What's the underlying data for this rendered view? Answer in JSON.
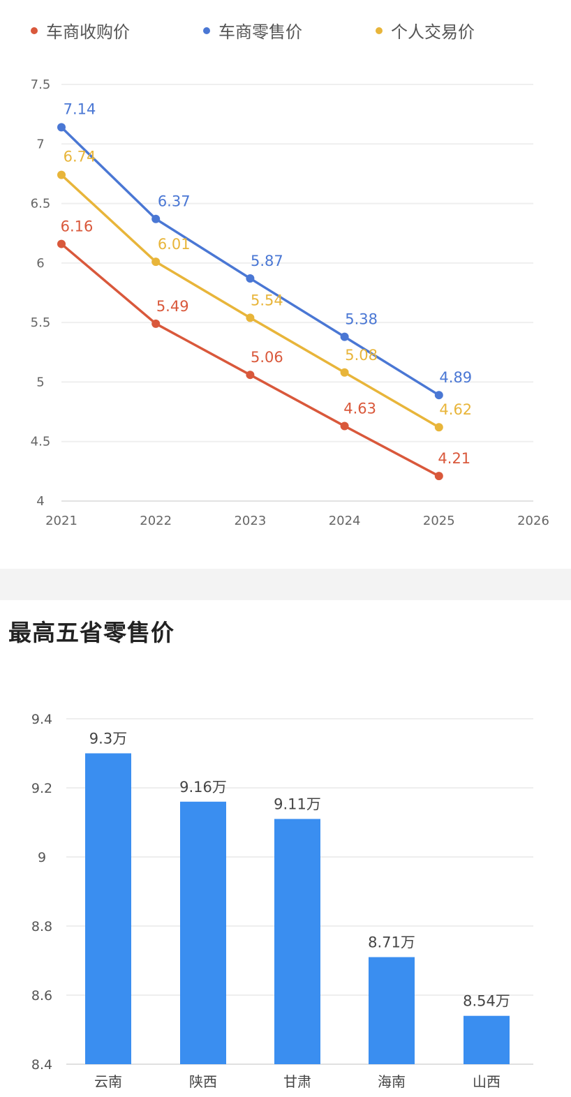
{
  "chart_data": [
    {
      "type": "line",
      "legend": [
        {
          "name": "车商收购价",
          "color": "#d9583b"
        },
        {
          "name": "车商零售价",
          "color": "#4a77d4"
        },
        {
          "name": "个人交易价",
          "color": "#e8b53a"
        }
      ],
      "x": [
        2021,
        2022,
        2023,
        2024,
        2025
      ],
      "x_ticks": [
        "2021",
        "2022",
        "2023",
        "2024",
        "2025",
        "2026"
      ],
      "y_ticks": [
        "4",
        "4.5",
        "5",
        "5.5",
        "6",
        "6.5",
        "7",
        "7.5"
      ],
      "ylim": [
        4,
        7.5
      ],
      "xlim": [
        2021,
        2026
      ],
      "series": [
        {
          "name": "车商收购价",
          "color": "#d9583b",
          "values": [
            6.16,
            5.49,
            5.06,
            4.63,
            4.21
          ],
          "labels": [
            "6.16",
            "5.49",
            "5.06",
            "4.63",
            "4.21"
          ]
        },
        {
          "name": "车商零售价",
          "color": "#4a77d4",
          "values": [
            7.14,
            6.37,
            5.87,
            5.38,
            4.89
          ],
          "labels": [
            "7.14",
            "6.37",
            "5.87",
            "5.38",
            "4.89"
          ]
        },
        {
          "name": "个人交易价",
          "color": "#e8b53a",
          "values": [
            6.74,
            6.01,
            5.54,
            5.08,
            4.62
          ],
          "labels": [
            "6.74",
            "6.01",
            "5.54",
            "5.08",
            "4.62"
          ]
        }
      ],
      "grid": true,
      "legend_position": "top"
    },
    {
      "type": "bar",
      "title": "最高五省零售价",
      "categories": [
        "云南",
        "陕西",
        "甘肃",
        "海南",
        "山西"
      ],
      "values": [
        9.3,
        9.16,
        9.11,
        8.71,
        8.54
      ],
      "labels": [
        "9.3万",
        "9.16万",
        "9.11万",
        "8.71万",
        "8.54万"
      ],
      "y_ticks": [
        "8.4",
        "8.6",
        "8.8",
        "9",
        "9.2",
        "9.4"
      ],
      "ylim": [
        8.4,
        9.4
      ],
      "color": "#3a8ef0",
      "grid": true
    }
  ]
}
